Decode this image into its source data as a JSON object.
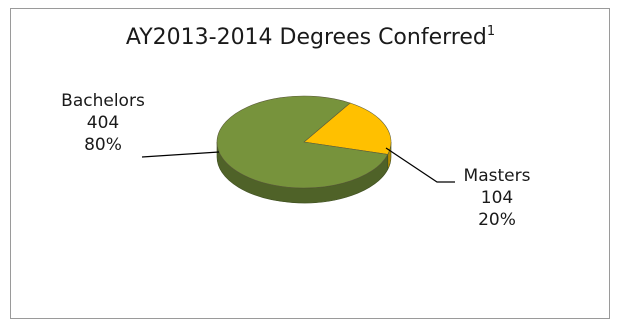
{
  "chart_data": {
    "type": "pie",
    "title": "AY2013-2014 Degrees Conferred",
    "title_footnote": "1",
    "three_d": true,
    "slices": [
      {
        "label": "Bachelors",
        "value": 404,
        "percent": "80%",
        "color": "#77933c",
        "side_color": "#4f6228"
      },
      {
        "label": "Masters",
        "value": 104,
        "percent": "20%",
        "color": "#ffc000",
        "side_color": "#b58a00"
      }
    ],
    "legend": "none"
  }
}
